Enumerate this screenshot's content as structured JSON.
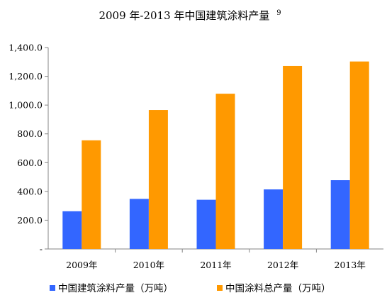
{
  "chart_data": {
    "type": "bar",
    "title": "2009 年-2013 年中国建筑涂料产量",
    "title_superscript": "9",
    "categories": [
      "2009年",
      "2010年",
      "2011年",
      "2012年",
      "2013年"
    ],
    "series": [
      {
        "name": "中国建筑涂料产量（万吨）",
        "color": "#3366ff",
        "values": [
          262,
          348,
          342,
          414,
          478
        ]
      },
      {
        "name": "中国涂料总产量（万吨）",
        "color": "#ff9900",
        "values": [
          755,
          966,
          1079,
          1272,
          1303
        ]
      }
    ],
    "ylim": [
      0,
      1400
    ],
    "yticks": [
      0,
      200,
      400,
      600,
      800,
      1000,
      1200,
      1400
    ],
    "ytick_labels": [
      "-",
      "200.0",
      "400.0",
      "600.0",
      "800.0",
      "1,000.0",
      "1,200.0",
      "1,400.0"
    ],
    "grid": false,
    "legend_position": "bottom"
  }
}
